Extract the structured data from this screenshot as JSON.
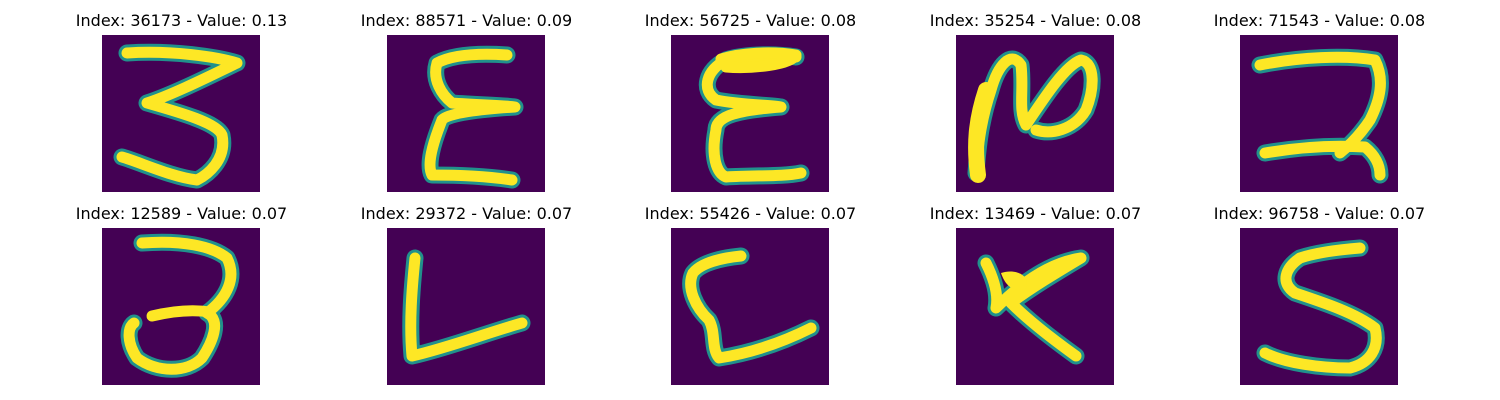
{
  "background_color": "#440154",
  "stroke_colors": {
    "edge": "#21918c",
    "core": "#fde725"
  },
  "panels": [
    {
      "title": "Index: 36173 - Value: 0.13"
    },
    {
      "title": "Index: 88571 - Value: 0.09"
    },
    {
      "title": "Index: 56725 - Value: 0.08"
    },
    {
      "title": "Index: 35254 - Value: 0.08"
    },
    {
      "title": "Index: 71543 - Value: 0.08"
    },
    {
      "title": "Index: 12589 - Value: 0.07"
    },
    {
      "title": "Index: 29372 - Value: 0.07"
    },
    {
      "title": "Index: 55426 - Value: 0.07"
    },
    {
      "title": "Index: 13469 - Value: 0.07"
    },
    {
      "title": "Index: 96758 - Value: 0.07"
    }
  ]
}
